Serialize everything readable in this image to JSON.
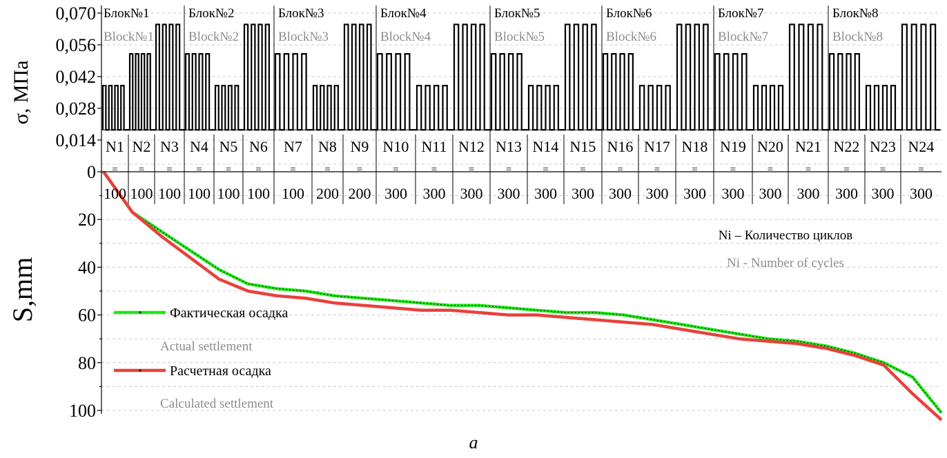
{
  "chart_data": [
    {
      "type": "line",
      "title": "",
      "ylabel": "σ, МПа",
      "ylim": [
        0,
        0.07
      ],
      "yticks": [
        "0,070",
        "0,056",
        "0,042",
        "0,028",
        "0,014",
        "0"
      ],
      "blocks": [
        {
          "name_ru": "Блок№1",
          "name_en": "Block№1"
        },
        {
          "name_ru": "Блок№2",
          "name_en": "Block№2"
        },
        {
          "name_ru": "Блок№3",
          "name_en": "Block№3"
        },
        {
          "name_ru": "Блок№4",
          "name_en": "Block№4"
        },
        {
          "name_ru": "Блок№5",
          "name_en": "Block№5"
        },
        {
          "name_ru": "Блок№6",
          "name_en": "Block№6"
        },
        {
          "name_ru": "Блок№7",
          "name_en": "Block№7"
        },
        {
          "name_ru": "Блок№8",
          "name_en": "Block№8"
        }
      ],
      "stages": [
        {
          "label": "N1",
          "cycles": "100",
          "sigma_max": 0.038
        },
        {
          "label": "N2",
          "cycles": "100",
          "sigma_max": 0.052
        },
        {
          "label": "N3",
          "cycles": "100",
          "sigma_max": 0.065
        },
        {
          "label": "N4",
          "cycles": "100",
          "sigma_max": 0.052
        },
        {
          "label": "N5",
          "cycles": "100",
          "sigma_max": 0.038
        },
        {
          "label": "N6",
          "cycles": "100",
          "sigma_max": 0.065
        },
        {
          "label": "N7",
          "cycles": "100",
          "sigma_max": 0.052
        },
        {
          "label": "N8",
          "cycles": "200",
          "sigma_max": 0.038
        },
        {
          "label": "N9",
          "cycles": "200",
          "sigma_max": 0.065
        },
        {
          "label": "N10",
          "cycles": "300",
          "sigma_max": 0.052
        },
        {
          "label": "N11",
          "cycles": "300",
          "sigma_max": 0.038
        },
        {
          "label": "N12",
          "cycles": "300",
          "sigma_max": 0.065
        },
        {
          "label": "N13",
          "cycles": "300",
          "sigma_max": 0.052
        },
        {
          "label": "N14",
          "cycles": "300",
          "sigma_max": 0.038
        },
        {
          "label": "N15",
          "cycles": "300",
          "sigma_max": 0.065
        },
        {
          "label": "N16",
          "cycles": "300",
          "sigma_max": 0.052
        },
        {
          "label": "N17",
          "cycles": "300",
          "sigma_max": 0.038
        },
        {
          "label": "N18",
          "cycles": "300",
          "sigma_max": 0.065
        },
        {
          "label": "N19",
          "cycles": "300",
          "sigma_max": 0.052
        },
        {
          "label": "N20",
          "cycles": "300",
          "sigma_max": 0.038
        },
        {
          "label": "N21",
          "cycles": "300",
          "sigma_max": 0.065
        },
        {
          "label": "N22",
          "cycles": "300",
          "sigma_max": 0.052
        },
        {
          "label": "N23",
          "cycles": "300",
          "sigma_max": 0.038
        },
        {
          "label": "N24",
          "cycles": "300",
          "sigma_max": 0.065
        }
      ],
      "block_boundaries_stage": [
        3,
        6,
        9,
        12,
        15,
        18,
        21
      ],
      "legend_cycles_ru": "Ni – Количество циклов",
      "legend_cycles_en": "Ni - Number of cycles"
    },
    {
      "type": "line",
      "title": "",
      "ylabel": "S,mm",
      "ylim": [
        0,
        100
      ],
      "y_inverted": true,
      "yticks": [
        "20",
        "40",
        "60",
        "80",
        "100"
      ],
      "grid": true,
      "legend_placement": "left",
      "series": [
        {
          "name_ru": "Фактическая осадка",
          "name_en": "Actual settlement",
          "color": "#22e51a",
          "values": [
            0,
            17,
            25,
            33,
            41,
            47,
            49,
            50,
            52,
            53,
            54,
            55,
            56,
            56,
            57,
            58,
            59,
            59,
            60,
            62,
            64,
            66,
            68,
            70,
            71,
            73,
            76,
            80,
            86,
            101
          ]
        },
        {
          "name_ru": "Расчетная осадка",
          "name_en": "Calculated settlement",
          "color": "#e8413c",
          "values": [
            0,
            17,
            27,
            36,
            45,
            50,
            52,
            53,
            55,
            56,
            57,
            58,
            58,
            59,
            60,
            60,
            61,
            62,
            63,
            64,
            66,
            68,
            70,
            71,
            72,
            74,
            77,
            81,
            93,
            104
          ]
        }
      ]
    }
  ],
  "caption": "a"
}
